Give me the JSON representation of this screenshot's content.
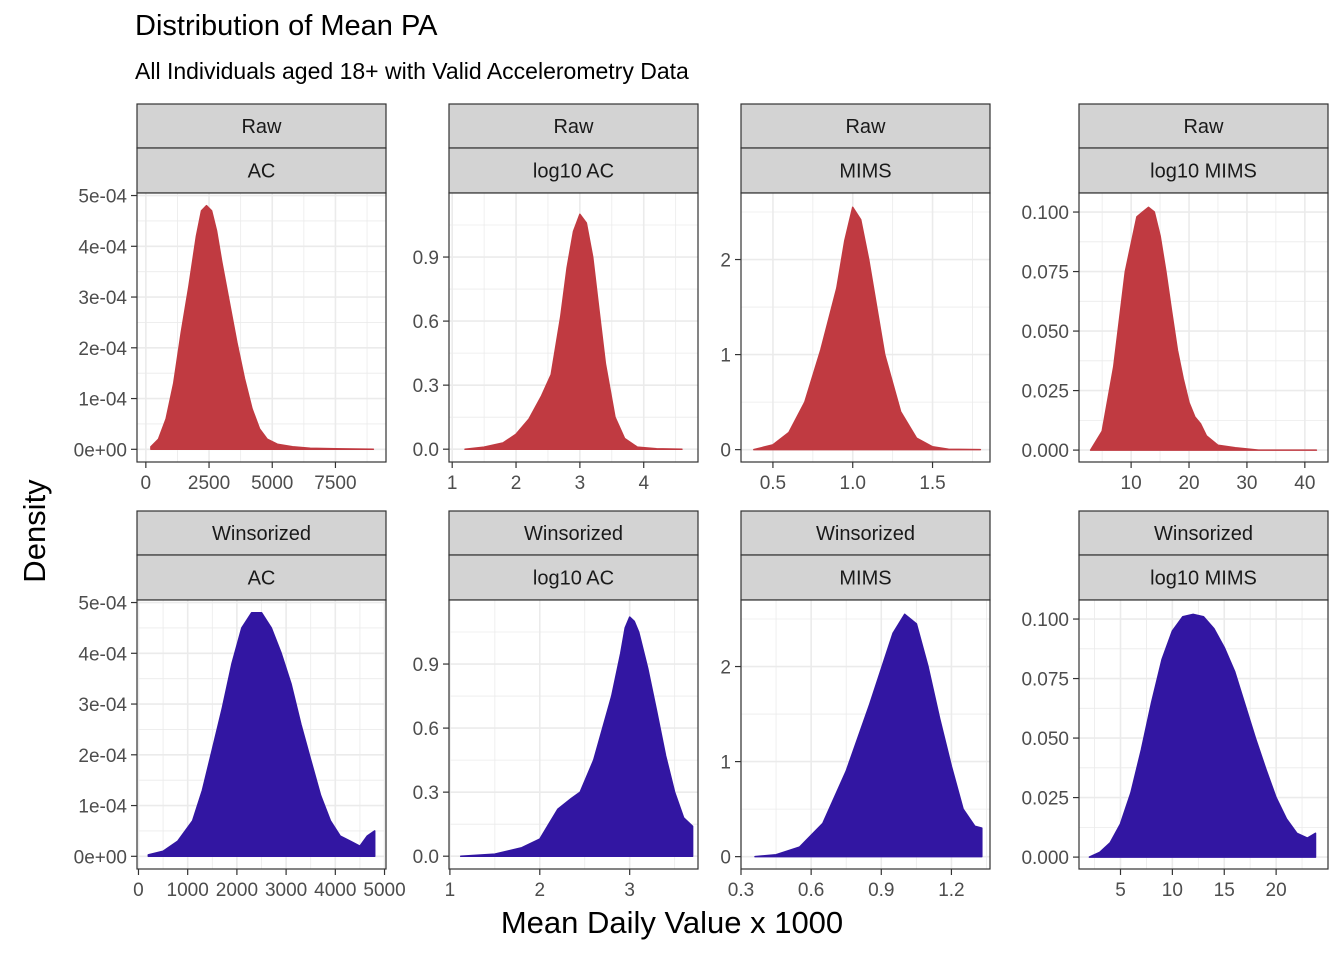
{
  "title": "Distribution of Mean PA",
  "subtitle": "All Individuals aged 18+ with Valid Accelerometry Data",
  "xlabel": "Mean Daily Value x 1000",
  "ylabel": "Density",
  "colors": {
    "raw": "#C03A41",
    "winsorized": "#3216A2",
    "strip": "#D3D3D3",
    "grid": "#EBEBEB",
    "axis_text": "#4D4D4D"
  },
  "chart_data": [
    {
      "type": "area",
      "strip_top": "Raw",
      "strip_bottom": "AC",
      "x": [
        200,
        500,
        800,
        1100,
        1400,
        1700,
        2000,
        2200,
        2400,
        2600,
        2800,
        3000,
        3300,
        3600,
        3900,
        4200,
        4500,
        4800,
        5200,
        5800,
        6500,
        7500,
        9000
      ],
      "y": [
        5e-06,
        2e-05,
        6e-05,
        0.00013,
        0.00023,
        0.00032,
        0.00042,
        0.00047,
        0.00048,
        0.00047,
        0.00043,
        0.00037,
        0.00029,
        0.00021,
        0.00014,
        8e-05,
        4e-05,
        2e-05,
        1e-05,
        5e-06,
        2e-06,
        1e-06,
        0.0
      ],
      "xlim": [
        -350,
        9500
      ],
      "ylim": [
        -2.5e-05,
        0.000505
      ],
      "xticks": [
        0,
        2500,
        5000,
        7500
      ],
      "xticklabels": [
        "0",
        "2500",
        "5000",
        "7500"
      ],
      "yticks": [
        0,
        0.0001,
        0.0002,
        0.0003,
        0.0004,
        0.0005
      ],
      "yticklabels": [
        "0e+00",
        "1e-04",
        "2e-04",
        "3e-04",
        "4e-04",
        "5e-04"
      ]
    },
    {
      "type": "area",
      "strip_top": "Raw",
      "strip_bottom": "log10 AC",
      "x": [
        1.2,
        1.5,
        1.8,
        2.0,
        2.2,
        2.4,
        2.55,
        2.7,
        2.8,
        2.9,
        3.0,
        3.1,
        3.2,
        3.3,
        3.4,
        3.55,
        3.7,
        3.9,
        4.2,
        4.6
      ],
      "y": [
        0.0,
        0.01,
        0.03,
        0.07,
        0.14,
        0.25,
        0.35,
        0.62,
        0.85,
        1.02,
        1.1,
        1.06,
        0.9,
        0.65,
        0.4,
        0.15,
        0.05,
        0.01,
        0.002,
        0.0
      ],
      "xlim": [
        0.95,
        4.85
      ],
      "ylim": [
        -0.06,
        1.2
      ],
      "xticks": [
        1,
        2,
        3,
        4
      ],
      "xticklabels": [
        "1",
        "2",
        "3",
        "4"
      ],
      "yticks": [
        0,
        0.3,
        0.6,
        0.9
      ],
      "yticklabels": [
        "0.0",
        "0.3",
        "0.6",
        "0.9"
      ]
    },
    {
      "type": "area",
      "strip_top": "Raw",
      "strip_bottom": "MIMS",
      "x": [
        0.38,
        0.5,
        0.6,
        0.7,
        0.8,
        0.9,
        0.95,
        1.0,
        1.05,
        1.1,
        1.15,
        1.2,
        1.3,
        1.4,
        1.5,
        1.6,
        1.8
      ],
      "y": [
        0.0,
        0.05,
        0.18,
        0.5,
        1.05,
        1.7,
        2.2,
        2.55,
        2.42,
        2.0,
        1.5,
        1.0,
        0.4,
        0.12,
        0.03,
        0.005,
        0.0
      ],
      "xlim": [
        0.3,
        1.86
      ],
      "ylim": [
        -0.13,
        2.7
      ],
      "xticks": [
        0.5,
        1.0,
        1.5
      ],
      "xticklabels": [
        "0.5",
        "1.0",
        "1.5"
      ],
      "yticks": [
        0,
        1,
        2
      ],
      "yticklabels": [
        "0",
        "1",
        "2"
      ]
    },
    {
      "type": "area",
      "strip_top": "Raw",
      "strip_bottom": "log10 MIMS",
      "x": [
        3,
        5,
        7,
        9,
        11,
        12,
        13,
        14,
        15,
        16,
        17,
        18,
        19,
        20,
        21,
        22,
        23,
        25,
        28,
        32,
        38,
        42
      ],
      "y": [
        0.0,
        0.008,
        0.035,
        0.075,
        0.098,
        0.1,
        0.102,
        0.1,
        0.09,
        0.075,
        0.058,
        0.042,
        0.03,
        0.02,
        0.014,
        0.011,
        0.006,
        0.002,
        0.001,
        0.0,
        0.0,
        0.0
      ],
      "xlim": [
        1,
        44
      ],
      "ylim": [
        -0.005,
        0.108
      ],
      "xticks": [
        10,
        20,
        30,
        40
      ],
      "xticklabels": [
        "10",
        "20",
        "30",
        "40"
      ],
      "yticks": [
        0,
        0.025,
        0.05,
        0.075,
        0.1
      ],
      "yticklabels": [
        "0.000",
        "0.025",
        "0.050",
        "0.075",
        "0.100"
      ]
    },
    {
      "type": "area",
      "strip_top": "Winsorized",
      "strip_bottom": "AC",
      "x": [
        200,
        500,
        800,
        1100,
        1300,
        1500,
        1700,
        1900,
        2100,
        2300,
        2500,
        2700,
        2900,
        3100,
        3300,
        3500,
        3700,
        3900,
        4100,
        4300,
        4500,
        4650,
        4800
      ],
      "y": [
        3e-06,
        1e-05,
        3e-05,
        7e-05,
        0.00013,
        0.00021,
        0.00029,
        0.00038,
        0.00045,
        0.00048,
        0.00048,
        0.00045,
        0.0004,
        0.00034,
        0.00026,
        0.00019,
        0.00012,
        7e-05,
        4e-05,
        3e-05,
        2e-05,
        4e-05,
        5e-05
      ],
      "xlim": [
        -30,
        5030
      ],
      "ylim": [
        -2.5e-05,
        0.000505
      ],
      "xticks": [
        0,
        1000,
        2000,
        3000,
        4000,
        5000
      ],
      "xticklabels": [
        "0",
        "1000",
        "2000",
        "3000",
        "4000",
        "5000"
      ],
      "yticks": [
        0,
        0.0001,
        0.0002,
        0.0003,
        0.0004,
        0.0005
      ],
      "yticklabels": [
        "0e+00",
        "1e-04",
        "2e-04",
        "3e-04",
        "4e-04",
        "5e-04"
      ]
    },
    {
      "type": "area",
      "strip_top": "Winsorized",
      "strip_bottom": "log10 AC",
      "x": [
        1.12,
        1.5,
        1.8,
        2.0,
        2.1,
        2.2,
        2.35,
        2.45,
        2.6,
        2.7,
        2.8,
        2.9,
        2.95,
        3.0,
        3.05,
        3.1,
        3.2,
        3.3,
        3.4,
        3.5,
        3.6,
        3.7
      ],
      "y": [
        0.0,
        0.01,
        0.04,
        0.08,
        0.15,
        0.22,
        0.27,
        0.3,
        0.45,
        0.6,
        0.75,
        0.95,
        1.07,
        1.12,
        1.1,
        1.05,
        0.88,
        0.68,
        0.47,
        0.3,
        0.18,
        0.14
      ],
      "xlim": [
        0.99,
        3.76
      ],
      "ylim": [
        -0.06,
        1.2
      ],
      "xticks": [
        1,
        2,
        3
      ],
      "xticklabels": [
        "1",
        "2",
        "3"
      ],
      "yticks": [
        0,
        0.3,
        0.6,
        0.9
      ],
      "yticklabels": [
        "0.0",
        "0.3",
        "0.6",
        "0.9"
      ]
    },
    {
      "type": "area",
      "strip_top": "Winsorized",
      "strip_bottom": "MIMS",
      "x": [
        0.36,
        0.45,
        0.55,
        0.65,
        0.75,
        0.85,
        0.95,
        1.0,
        1.05,
        1.1,
        1.15,
        1.2,
        1.25,
        1.3,
        1.33
      ],
      "y": [
        0.0,
        0.02,
        0.1,
        0.35,
        0.9,
        1.6,
        2.35,
        2.55,
        2.45,
        2.0,
        1.45,
        0.95,
        0.5,
        0.32,
        0.3
      ],
      "xlim": [
        0.3,
        1.365
      ],
      "ylim": [
        -0.13,
        2.7
      ],
      "xticks": [
        0.3,
        0.6,
        0.9,
        1.2
      ],
      "xticklabels": [
        "0.3",
        "0.6",
        "0.9",
        "1.2"
      ],
      "yticks": [
        0,
        1,
        2
      ],
      "yticklabels": [
        "0",
        "1",
        "2"
      ]
    },
    {
      "type": "area",
      "strip_top": "Winsorized",
      "strip_bottom": "log10 MIMS",
      "x": [
        2,
        3,
        4,
        5,
        6,
        7,
        8,
        9,
        10,
        11,
        12,
        13,
        14,
        15,
        16,
        17,
        18,
        19,
        20,
        21,
        22,
        23,
        23.8
      ],
      "y": [
        0.0,
        0.002,
        0.006,
        0.014,
        0.027,
        0.045,
        0.065,
        0.083,
        0.095,
        0.101,
        0.102,
        0.101,
        0.096,
        0.088,
        0.078,
        0.064,
        0.05,
        0.037,
        0.025,
        0.016,
        0.01,
        0.008,
        0.01
      ],
      "xlim": [
        1,
        25
      ],
      "ylim": [
        -0.005,
        0.108
      ],
      "xticks": [
        5,
        10,
        15,
        20
      ],
      "xticklabels": [
        "5",
        "10",
        "15",
        "20"
      ],
      "yticks": [
        0,
        0.025,
        0.05,
        0.075,
        0.1
      ],
      "yticklabels": [
        "0.000",
        "0.025",
        "0.050",
        "0.075",
        "0.100"
      ]
    }
  ]
}
